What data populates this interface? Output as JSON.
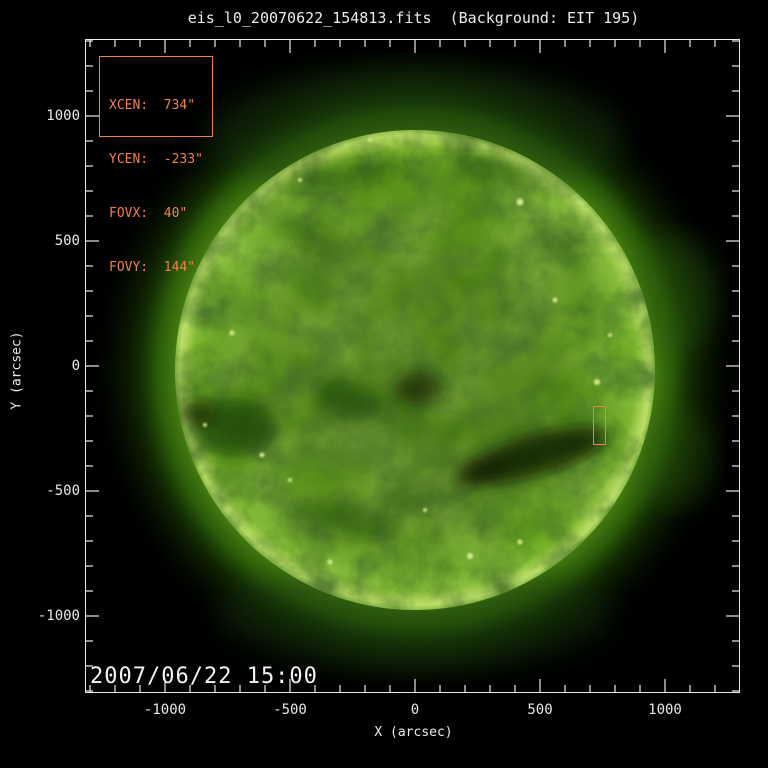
{
  "window": {
    "title": "eis_l0_20070622_154813.fits  (Background: EIT 195)"
  },
  "legend": {
    "rows": [
      {
        "label": "XCEN:",
        "value": "734\""
      },
      {
        "label": "YCEN:",
        "value": "-233\""
      },
      {
        "label": "FOVX:",
        "value": "40\""
      },
      {
        "label": "FOVY:",
        "value": "144\""
      }
    ]
  },
  "timestamp": "2007/06/22 15:00",
  "axes": {
    "x": {
      "label": "X (arcsec)",
      "ticks": [
        "-1000",
        "-500",
        "0",
        "500",
        "1000"
      ]
    },
    "y": {
      "label": "Y (arcsec)",
      "ticks": [
        "1000",
        "500",
        "0",
        "-500",
        "-1000"
      ]
    }
  },
  "fov": {
    "xcen_arcsec": 734,
    "ycen_arcsec": -233,
    "fovx_arcsec": 40,
    "fovy_arcsec": 144
  },
  "colors": {
    "background": "#000000",
    "axis": "#e9e9e9",
    "annotation_orange": "#ef8147",
    "sun_disk_green": "#578f17",
    "sun_rim_green": "#b9dd66",
    "coronal_hole_dark": "#0b2003"
  },
  "chart_data": {
    "type": "heatmap",
    "title": "eis_l0_20070622_154813.fits  (Background: EIT 195)",
    "xlabel": "X (arcsec)",
    "ylabel": "Y (arcsec)",
    "xlim": [
      -1316,
      1300
    ],
    "ylim": [
      -1304,
      1304
    ],
    "x_ticks": [
      -1000,
      -500,
      0,
      500,
      1000
    ],
    "y_ticks": [
      1000,
      500,
      0,
      -500,
      -1000
    ],
    "minor_tick_step_arcsec": 100,
    "grid": false,
    "legend_position": "top-left",
    "description": "Full-disk EIT 195 A solar EUV image (green false color) used as background, with the EIS raster field-of-view drawn as a small orange rectangle on the disk",
    "solar_disk": {
      "center_arcsec": [
        0,
        0
      ],
      "radius_arcsec": 960
    },
    "fov_box_arcsec": {
      "xcen": 734,
      "ycen": -233,
      "fovx": 40,
      "fovy": 144
    },
    "annotations": [
      {
        "text": "2007/06/22 15:00",
        "position": "bottom-left"
      },
      {
        "text": "XCEN: 734\" / YCEN: -233\" / FOVX: 40\" / FOVY: 144\"",
        "position": "top-left box"
      }
    ]
  }
}
